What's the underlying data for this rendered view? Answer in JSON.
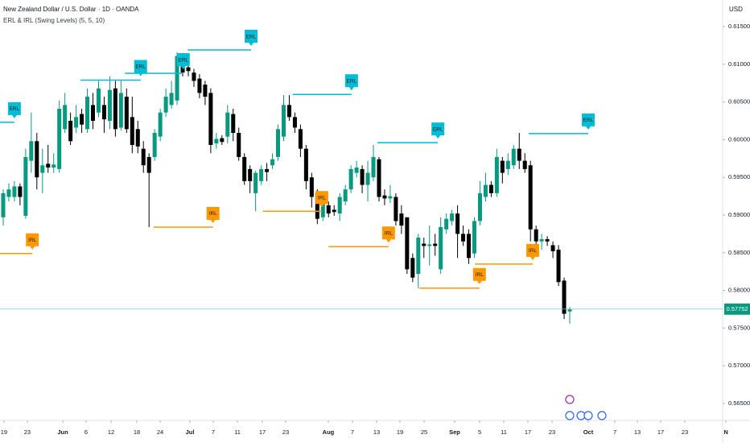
{
  "chart_data": {
    "type": "candlestick",
    "title": "New Zealand Dollar / U.S. Dollar · 1D · OANDA",
    "subtitle": "ERL & IRL (Swing Levels) (5, 5, 10)",
    "y_unit": "USD",
    "up_color": "#089981",
    "down_color": "#000000",
    "grid": false,
    "open": [
      0.5897,
      0.5924,
      0.5924,
      0.5938,
      0.5899,
      0.5972,
      0.5998,
      0.5956,
      0.5968,
      0.5963,
      0.5961,
      0.6014,
      0.6025,
      0.6016,
      0.6034,
      0.6014,
      0.6046,
      0.6036,
      0.6046,
      0.6025,
      0.6068,
      0.6016,
      0.6057,
      0.603,
      0.6014,
      0.5988,
      0.5977,
      0.5977,
      0.6004,
      0.6036,
      0.6046,
      0.6052,
      0.6108,
      0.6096,
      0.6089,
      0.6081,
      0.6073,
      0.6062,
      0.5995,
      0.6002,
      0.6004,
      0.6034,
      0.6009,
      0.5977,
      0.5961,
      0.5929,
      0.5945,
      0.5961,
      0.5966,
      0.5977,
      0.6004,
      0.6046,
      0.603,
      0.6014,
      0.5988,
      0.595,
      0.5929,
      0.5897,
      0.5913,
      0.5907,
      0.5902,
      0.5918,
      0.5934,
      0.5956,
      0.5961,
      0.594,
      0.595,
      0.5974,
      0.5926,
      0.5922,
      0.5924,
      0.5902,
      0.5897,
      0.5843,
      0.5822,
      0.5862,
      0.5859,
      0.5862,
      0.5828,
      0.5881,
      0.5892,
      0.5902,
      0.5875,
      0.5875,
      0.5849,
      0.5892,
      0.5924,
      0.594,
      0.5929,
      0.5972,
      0.5961,
      0.5966,
      0.5988,
      0.5972,
      0.5966,
      0.5881,
      0.5865,
      0.5868,
      0.586,
      0.5854,
      0.5813,
      0.5772
    ],
    "high": [
      0.5934,
      0.5942,
      0.5945,
      0.5942,
      0.5988,
      0.6036,
      0.6009,
      0.5988,
      0.5993,
      0.5982,
      0.6052,
      0.6062,
      0.6036,
      0.6046,
      0.6041,
      0.6068,
      0.6062,
      0.6078,
      0.6057,
      0.6084,
      0.6078,
      0.6078,
      0.6068,
      0.6057,
      0.6025,
      0.5998,
      0.5982,
      0.6014,
      0.6041,
      0.6068,
      0.6078,
      0.6116,
      0.6115,
      0.6105,
      0.6094,
      0.6087,
      0.6078,
      0.6068,
      0.6009,
      0.6006,
      0.6046,
      0.6041,
      0.6016,
      0.5982,
      0.5966,
      0.5959,
      0.5966,
      0.5969,
      0.5982,
      0.602,
      0.6059,
      0.6059,
      0.6036,
      0.602,
      0.5993,
      0.5956,
      0.5934,
      0.5924,
      0.5918,
      0.5913,
      0.5929,
      0.594,
      0.5966,
      0.5972,
      0.5966,
      0.5972,
      0.5993,
      0.5977,
      0.5934,
      0.594,
      0.5929,
      0.5913,
      0.5897,
      0.5849,
      0.5875,
      0.587,
      0.5886,
      0.5875,
      0.5897,
      0.5902,
      0.5907,
      0.5913,
      0.5886,
      0.5881,
      0.5897,
      0.5945,
      0.5956,
      0.5945,
      0.5988,
      0.5977,
      0.5982,
      0.5993,
      0.6009,
      0.5982,
      0.5972,
      0.5886,
      0.5875,
      0.5872,
      0.5865,
      0.586,
      0.5817,
      0.5778
    ],
    "low": [
      0.5886,
      0.5918,
      0.5918,
      0.5913,
      0.5895,
      0.5956,
      0.5934,
      0.5929,
      0.5956,
      0.5956,
      0.5956,
      0.6009,
      0.5993,
      0.6009,
      0.6009,
      0.6009,
      0.6014,
      0.603,
      0.6009,
      0.6014,
      0.6004,
      0.6012,
      0.6009,
      0.5982,
      0.5982,
      0.5956,
      0.5884,
      0.5972,
      0.5998,
      0.603,
      0.6041,
      0.6046,
      0.6084,
      0.6084,
      0.607,
      0.6055,
      0.6046,
      0.5982,
      0.5988,
      0.5993,
      0.5995,
      0.5998,
      0.5972,
      0.594,
      0.5929,
      0.5905,
      0.594,
      0.5945,
      0.5961,
      0.5972,
      0.5998,
      0.6025,
      0.6009,
      0.5977,
      0.5934,
      0.591,
      0.5888,
      0.5892,
      0.5897,
      0.5899,
      0.5892,
      0.5913,
      0.5929,
      0.595,
      0.5929,
      0.5918,
      0.5945,
      0.5918,
      0.5913,
      0.5916,
      0.5886,
      0.5875,
      0.5822,
      0.5811,
      0.5803,
      0.5843,
      0.5833,
      0.5846,
      0.5822,
      0.5875,
      0.5886,
      0.5843,
      0.5859,
      0.5835,
      0.5843,
      0.5886,
      0.5918,
      0.5924,
      0.5924,
      0.5942,
      0.5953,
      0.5961,
      0.5961,
      0.5956,
      0.5865,
      0.5854,
      0.5854,
      0.5859,
      0.5843,
      0.5806,
      0.5762,
      0.5756
    ],
    "close": [
      0.5929,
      0.5934,
      0.5938,
      0.5924,
      0.5977,
      0.5998,
      0.595,
      0.5966,
      0.5963,
      0.5967,
      0.6041,
      0.6046,
      0.5998,
      0.603,
      0.602,
      0.6057,
      0.6025,
      0.6068,
      0.6027,
      0.6066,
      0.6014,
      0.6062,
      0.6014,
      0.5993,
      0.5991,
      0.5966,
      0.5956,
      0.6009,
      0.6036,
      0.6057,
      0.6062,
      0.6111,
      0.6089,
      0.6091,
      0.6078,
      0.6062,
      0.6057,
      0.5993,
      0.6001,
      0.5997,
      0.6036,
      0.6009,
      0.5977,
      0.5945,
      0.5945,
      0.5956,
      0.5961,
      0.5957,
      0.5974,
      0.6014,
      0.6046,
      0.603,
      0.6016,
      0.5988,
      0.5945,
      0.5924,
      0.5895,
      0.5918,
      0.5902,
      0.5904,
      0.5924,
      0.5934,
      0.5961,
      0.5963,
      0.594,
      0.5956,
      0.5977,
      0.5924,
      0.5922,
      0.5925,
      0.5892,
      0.5886,
      0.5828,
      0.5817,
      0.587,
      0.5859,
      0.5861,
      0.5859,
      0.5884,
      0.5895,
      0.5902,
      0.5875,
      0.5865,
      0.5843,
      0.5892,
      0.5929,
      0.594,
      0.5929,
      0.5977,
      0.5956,
      0.5972,
      0.5988,
      0.5972,
      0.5961,
      0.5881,
      0.5865,
      0.5868,
      0.5865,
      0.5852,
      0.5811,
      0.5769,
      0.57752
    ],
    "xlim": [
      -0.57,
      128.26
    ],
    "ylim": [
      0.56275,
      0.61853
    ],
    "xticks": [
      {
        "value": 0.14,
        "label": "19"
      },
      {
        "value": 4.3,
        "label": "23"
      },
      {
        "value": 10.62,
        "label": "Jun"
      },
      {
        "value": 14.78,
        "label": "6"
      },
      {
        "value": 19.23,
        "label": "12"
      },
      {
        "value": 23.82,
        "label": "18"
      },
      {
        "value": 27.98,
        "label": "24"
      },
      {
        "value": 33.29,
        "label": "Jul"
      },
      {
        "value": 37.45,
        "label": "7"
      },
      {
        "value": 41.75,
        "label": "11"
      },
      {
        "value": 46.2,
        "label": "17"
      },
      {
        "value": 50.36,
        "label": "23"
      },
      {
        "value": 57.96,
        "label": "Aug"
      },
      {
        "value": 62.27,
        "label": "7"
      },
      {
        "value": 66.57,
        "label": "13"
      },
      {
        "value": 70.73,
        "label": "19"
      },
      {
        "value": 75.04,
        "label": "25"
      },
      {
        "value": 80.49,
        "label": "Sep"
      },
      {
        "value": 84.94,
        "label": "5"
      },
      {
        "value": 89.24,
        "label": "11"
      },
      {
        "value": 93.54,
        "label": "17"
      },
      {
        "value": 97.85,
        "label": "23"
      },
      {
        "value": 104.3,
        "label": "Oct"
      },
      {
        "value": 109.04,
        "label": "7"
      },
      {
        "value": 113.06,
        "label": "13"
      },
      {
        "value": 117.22,
        "label": "17"
      },
      {
        "value": 121.52,
        "label": "23"
      },
      {
        "value": 128.84,
        "label": "N"
      }
    ],
    "yticks": [
      {
        "value": 0.615,
        "label": "0.61500"
      },
      {
        "value": 0.61,
        "label": "0.61000"
      },
      {
        "value": 0.605,
        "label": "0.60500"
      },
      {
        "value": 0.6,
        "label": "0.60000"
      },
      {
        "value": 0.595,
        "label": "0.59500"
      },
      {
        "value": 0.59,
        "label": "0.59000"
      },
      {
        "value": 0.585,
        "label": "0.58500"
      },
      {
        "value": 0.58,
        "label": "0.58000"
      },
      {
        "value": 0.575,
        "label": "0.57500"
      },
      {
        "value": 0.57,
        "label": "0.57000"
      },
      {
        "value": 0.565,
        "label": "0.56500"
      }
    ],
    "levels": [
      {
        "label": "ERL",
        "value": 0.6023,
        "start": -0.57,
        "end": 2.0,
        "color": "#00bcd4"
      },
      {
        "label": "ERL",
        "value": 0.6079,
        "start": 13.8,
        "end": 24.5,
        "color": "#00bcd4"
      },
      {
        "label": "ERL",
        "value": 0.6088,
        "start": 21.7,
        "end": 32.1,
        "color": "#00bcd4"
      },
      {
        "label": "ERL",
        "value": 0.6119,
        "start": 32.9,
        "end": 44.2,
        "color": "#00bcd4"
      },
      {
        "label": "ERL",
        "value": 0.606,
        "start": 51.6,
        "end": 62.1,
        "color": "#00bcd4"
      },
      {
        "label": "ERL",
        "value": 0.5996,
        "start": 66.7,
        "end": 77.5,
        "color": "#00bcd4"
      },
      {
        "label": "ERL",
        "value": 0.6008,
        "start": 93.7,
        "end": 104.3,
        "color": "#00bcd4"
      },
      {
        "label": "IRL",
        "value": 0.5849,
        "start": -0.57,
        "end": 5.2,
        "color": "#ff9800"
      },
      {
        "label": "IRL",
        "value": 0.5884,
        "start": 26.8,
        "end": 37.4,
        "color": "#ff9800"
      },
      {
        "label": "IRL",
        "value": 0.5905,
        "start": 46.3,
        "end": 56.8,
        "color": "#ff9800"
      },
      {
        "label": "IRL",
        "value": 0.5858,
        "start": 58.0,
        "end": 68.7,
        "color": "#ff9800"
      },
      {
        "label": "IRL",
        "value": 0.5803,
        "start": 74.2,
        "end": 84.9,
        "color": "#ff9800"
      },
      {
        "label": "IRL",
        "value": 0.5835,
        "start": 84.1,
        "end": 94.4,
        "color": "#ff9800"
      }
    ],
    "last_price": 0.57752
  }
}
